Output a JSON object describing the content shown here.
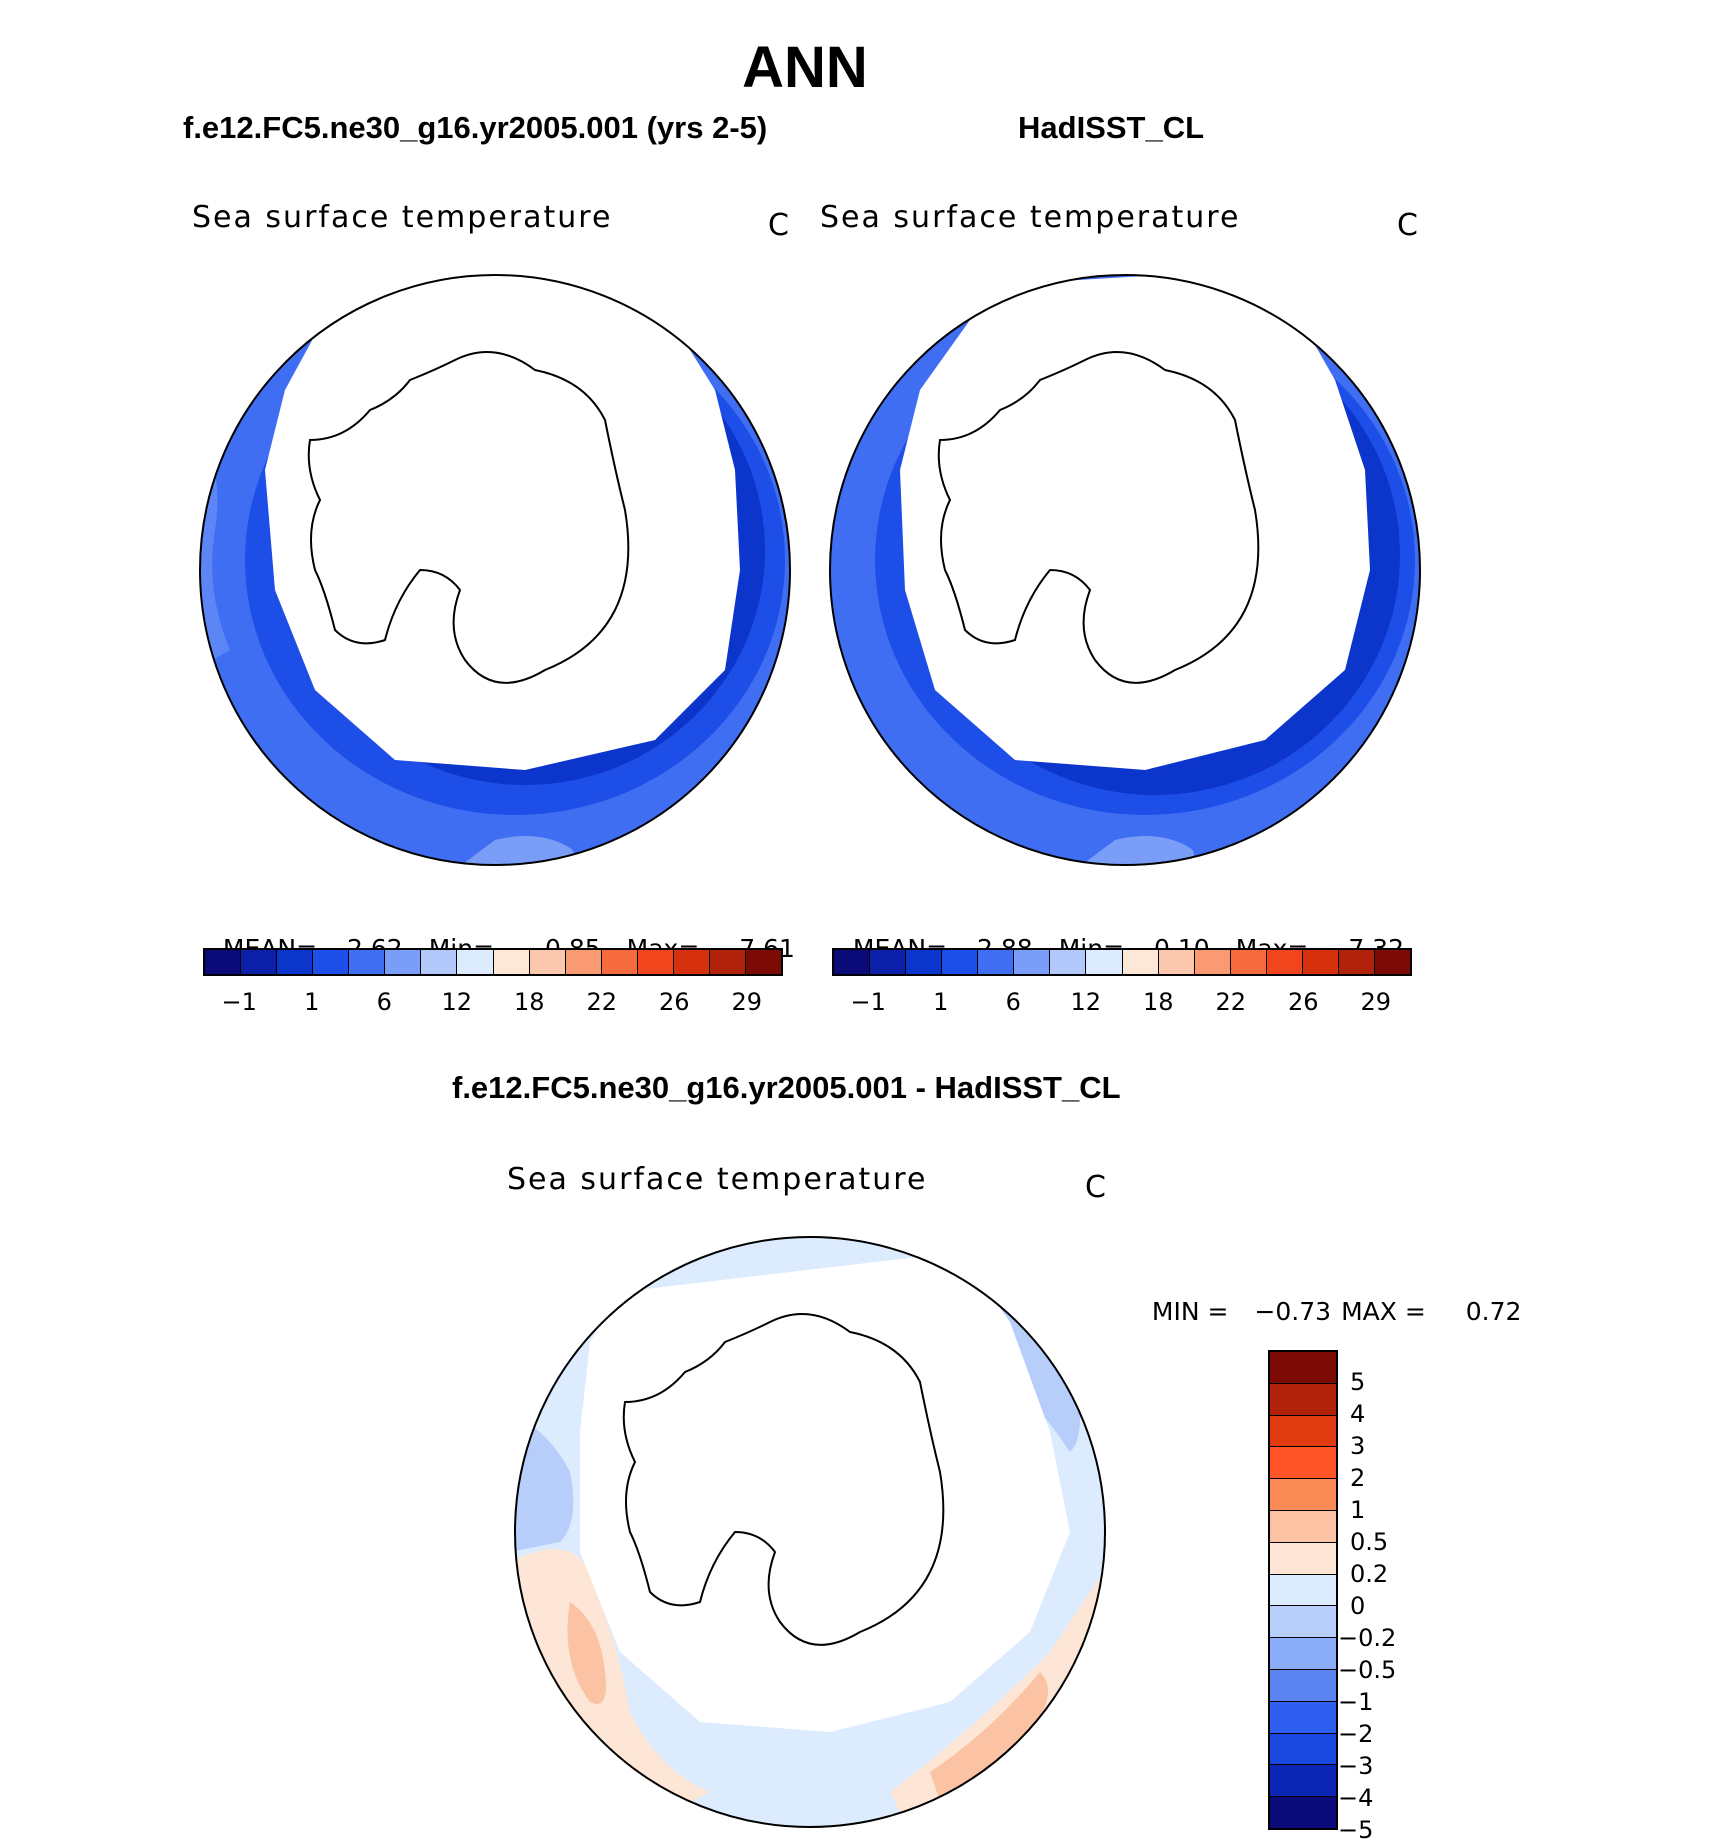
{
  "title": "ANN",
  "panels": [
    {
      "header": "f.e12.FC5.ne30_g16.yr2005.001 (yrs 2-5)",
      "plot_title": "Sea surface temperature",
      "units": "C",
      "stats": {
        "mean_label": "MEAN=",
        "mean": "2.62",
        "min_label": "Min=",
        "min": "−0.85",
        "max_label": "Max=",
        "max": "7.61"
      },
      "colorbar_ticks": [
        "−1",
        "1",
        "6",
        "12",
        "18",
        "22",
        "26",
        "29"
      ]
    },
    {
      "header": "HadISST_CL",
      "plot_title": "Sea surface temperature",
      "units": "C",
      "stats": {
        "mean_label": "MEAN=",
        "mean": "2.88",
        "min_label": "Min=",
        "min": "0.10",
        "max_label": "Max=",
        "max": "7.32"
      },
      "colorbar_ticks": [
        "−1",
        "1",
        "6",
        "12",
        "18",
        "22",
        "26",
        "29"
      ]
    }
  ],
  "difference": {
    "header": "f.e12.FC5.ne30_g16.yr2005.001 - HadISST_CL",
    "plot_title": "Sea surface temperature",
    "units": "C",
    "min_label": "MIN =",
    "min": "−0.73",
    "max_label": "MAX =",
    "max": "0.72",
    "colorbar_ticks": [
      "5",
      "4",
      "3",
      "2",
      "1",
      "0.5",
      "0.2",
      "0",
      "−0.2",
      "−0.5",
      "−1",
      "−2",
      "−3",
      "−4",
      "−5"
    ]
  },
  "colors": {
    "sst_scale": [
      "#0a0a78",
      "#0b1fa8",
      "#0c35cc",
      "#1d4fe8",
      "#3f6ef2",
      "#7a9ef7",
      "#b3c9fb",
      "#dcebfd",
      "#fde8d8",
      "#fbc8ad",
      "#f99a72",
      "#f56b3d",
      "#f0451d",
      "#d6310f",
      "#b0230a",
      "#7c0a05"
    ],
    "diff_scale": [
      "#7c0a05",
      "#b0230a",
      "#e03a10",
      "#ff5526",
      "#fa8a55",
      "#fbc3a3",
      "#fde6d6",
      "#dcebfd",
      "#b8cefa",
      "#8bacf8",
      "#5a85f0",
      "#2f5ff0",
      "#1848de",
      "#0b26b4",
      "#0a0a78"
    ]
  }
}
